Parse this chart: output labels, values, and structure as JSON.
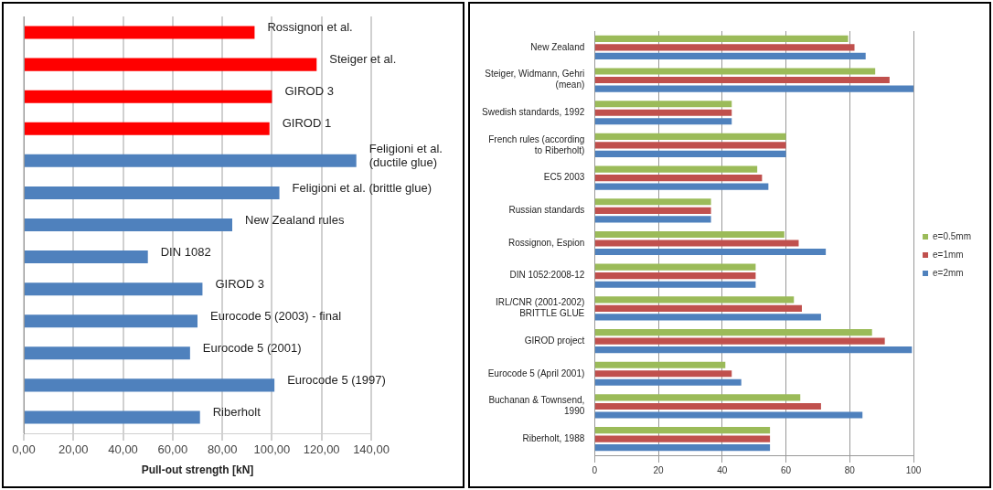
{
  "chart_data": [
    {
      "type": "bar",
      "orientation": "horizontal",
      "categories": [
        "Rossignon et al.",
        "Steiger et al.",
        "GIROD 3",
        "GIROD 1",
        "Feligioni et al. (ductile glue)",
        "Feligioni et al. (brittle glue)",
        "New Zealand rules",
        "DIN 1082",
        "GIROD 3",
        "Eurocode 5 (2003) - final",
        "Eurocode 5 (2001)",
        "Eurocode 5 (1997)",
        "Riberholt"
      ],
      "values": [
        93,
        118,
        100,
        99,
        134,
        103,
        84,
        50,
        72,
        70,
        67,
        101,
        71
      ],
      "colors": [
        "#ff0000",
        "#ff0000",
        "#ff0000",
        "#ff0000",
        "#4f81bd",
        "#4f81bd",
        "#4f81bd",
        "#4f81bd",
        "#4f81bd",
        "#4f81bd",
        "#4f81bd",
        "#4f81bd",
        "#4f81bd"
      ],
      "xlim": [
        0,
        140
      ],
      "xticks": [
        {
          "value": 0,
          "label": "0,00"
        },
        {
          "value": 20,
          "label": "20,00"
        },
        {
          "value": 40,
          "label": "40,00"
        },
        {
          "value": 60,
          "label": "60,00"
        },
        {
          "value": 80,
          "label": "80,00"
        },
        {
          "value": 100,
          "label": "100,00"
        },
        {
          "value": 120,
          "label": "120,00"
        },
        {
          "value": 140,
          "label": "140,00"
        }
      ],
      "xlabel": "Pull-out strength [kN]",
      "grid": "x",
      "legend": false,
      "tick_labels": "x"
    },
    {
      "type": "bar",
      "orientation": "horizontal",
      "categories": [
        "New Zealand",
        "Steiger, Widmann, Gehri (mean)",
        "Swedish standards, 1992",
        "French rules (according to Riberholt)",
        "EC5 2003",
        "Russian standards",
        "Rossignon, Espion",
        "DIN 1052:2008-12",
        "IRL/CNR (2001-2002) BRITTLE GLUE",
        "GIROD project",
        "Eurocode 5 (April 2001)",
        "Buchanan & Townsend, 1990",
        "Riberholt, 1988"
      ],
      "series": [
        {
          "name": "e=0.5mm",
          "color": "#9bbb59",
          "values": [
            79.5,
            88,
            43,
            60,
            51,
            36.5,
            59.5,
            50.5,
            62.5,
            87,
            41,
            64.5,
            55
          ]
        },
        {
          "name": "e=1mm",
          "color": "#c0504d",
          "values": [
            81.5,
            92.5,
            43,
            60,
            52.5,
            36.5,
            64,
            50.5,
            65,
            91,
            43,
            71,
            55
          ]
        },
        {
          "name": "e=2mm",
          "color": "#4f81bd",
          "values": [
            85,
            100,
            43,
            60,
            54.5,
            36.5,
            72.5,
            50.5,
            71,
            99.5,
            46,
            84,
            55
          ]
        }
      ],
      "xlim": [
        0,
        100
      ],
      "xticks": [
        0,
        20,
        40,
        60,
        80,
        100
      ],
      "grid": "x",
      "legend": "right"
    }
  ]
}
